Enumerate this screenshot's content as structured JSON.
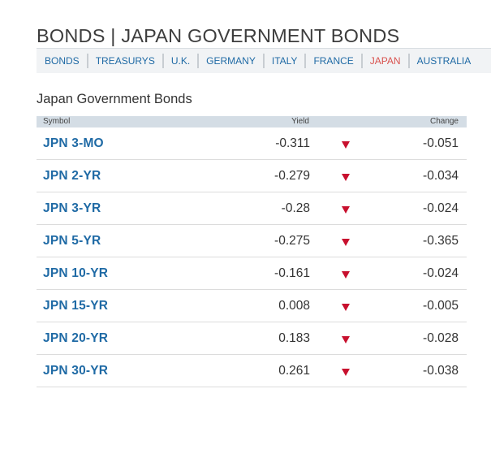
{
  "page": {
    "title": "BONDS | JAPAN GOVERNMENT BONDS"
  },
  "nav": {
    "tabs": [
      {
        "label": "BONDS",
        "active": false
      },
      {
        "label": "TREASURYS",
        "active": false
      },
      {
        "label": "U.K.",
        "active": false
      },
      {
        "label": "GERMANY",
        "active": false
      },
      {
        "label": "ITALY",
        "active": false
      },
      {
        "label": "FRANCE",
        "active": false
      },
      {
        "label": "JAPAN",
        "active": true
      },
      {
        "label": "AUSTRALIA",
        "active": false
      }
    ]
  },
  "section": {
    "title": "Japan Government Bonds"
  },
  "table": {
    "headers": {
      "symbol": "Symbol",
      "yield": "Yield",
      "change": "Change"
    },
    "rows": [
      {
        "symbol": "JPN 3-MO",
        "yield": "-0.311",
        "direction": "down",
        "change": "-0.051"
      },
      {
        "symbol": "JPN 2-YR",
        "yield": "-0.279",
        "direction": "down",
        "change": "-0.034"
      },
      {
        "symbol": "JPN 3-YR",
        "yield": "-0.28",
        "direction": "down",
        "change": "-0.024"
      },
      {
        "symbol": "JPN 5-YR",
        "yield": "-0.275",
        "direction": "down",
        "change": "-0.365"
      },
      {
        "symbol": "JPN 10-YR",
        "yield": "-0.161",
        "direction": "down",
        "change": "-0.024"
      },
      {
        "symbol": "JPN 15-YR",
        "yield": "0.008",
        "direction": "down",
        "change": "-0.005"
      },
      {
        "symbol": "JPN 20-YR",
        "yield": "0.183",
        "direction": "down",
        "change": "-0.028"
      },
      {
        "symbol": "JPN 30-YR",
        "yield": "0.261",
        "direction": "down",
        "change": "-0.038"
      }
    ]
  },
  "colors": {
    "link": "#1f6aa5",
    "active_tab": "#d9534f",
    "down_arrow": "#c8102e",
    "header_bg": "#d4dde5"
  },
  "icons": {
    "direction_down": "down-triangle-icon"
  }
}
